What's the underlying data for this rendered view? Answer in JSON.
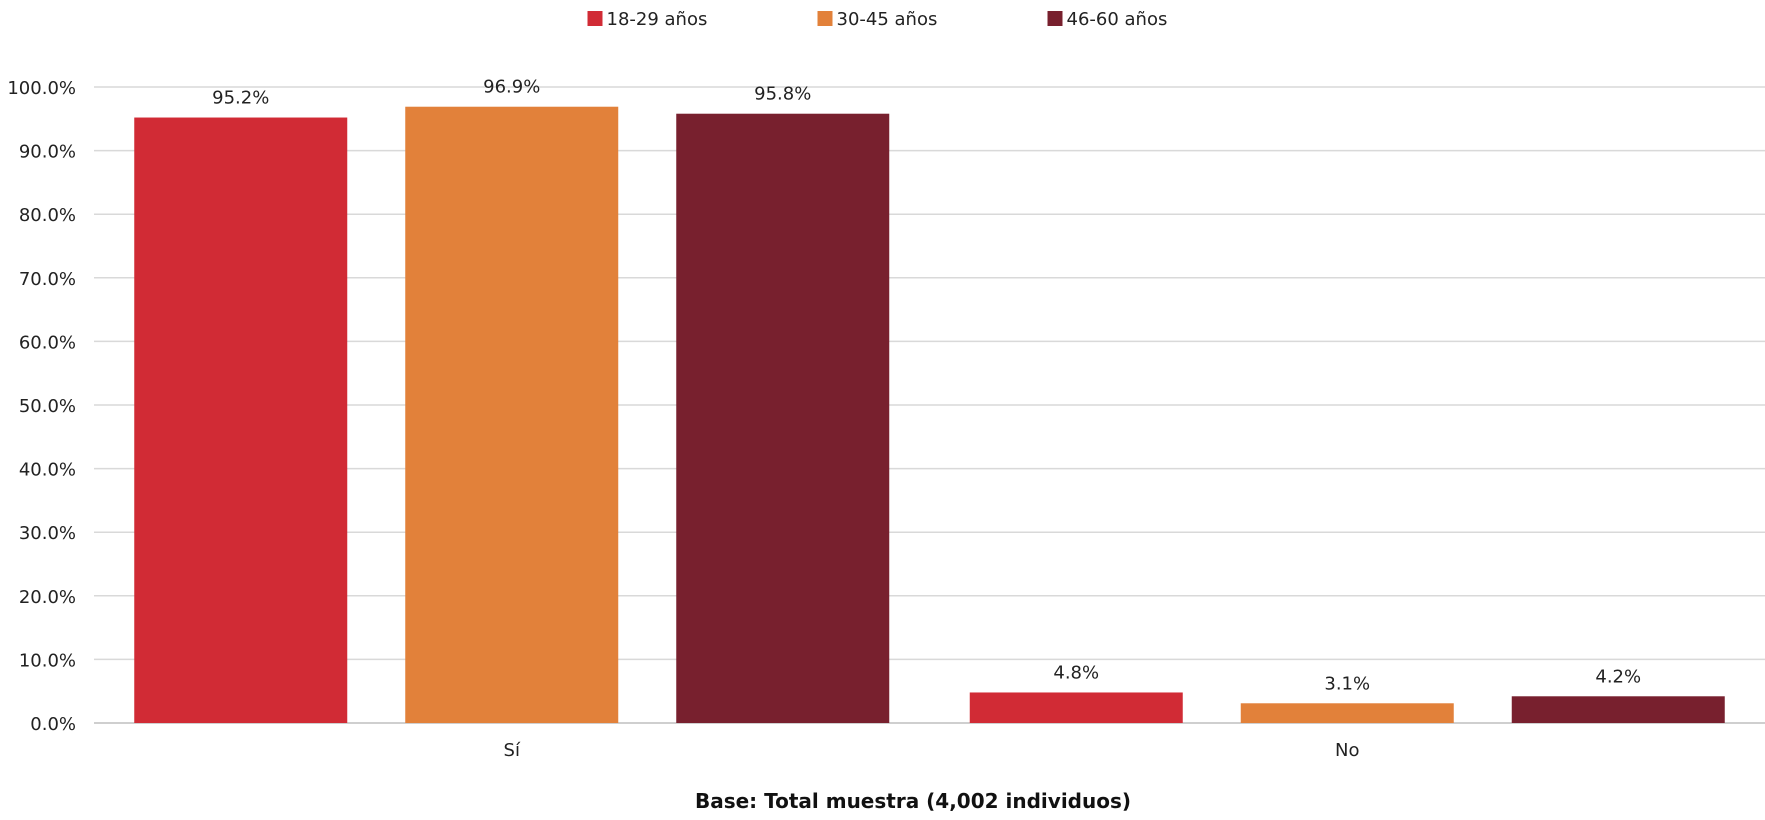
{
  "chart_data": {
    "type": "bar",
    "categories": [
      "Sí",
      "No"
    ],
    "series": [
      {
        "name": "18-29 años",
        "color": "#D12B35",
        "values": [
          95.2,
          4.8
        ],
        "labels": [
          "95.2%",
          "4.8%"
        ]
      },
      {
        "name": "30-45 años",
        "color": "#E2813A",
        "values": [
          96.9,
          3.1
        ],
        "labels": [
          "96.9%",
          "3.1%"
        ]
      },
      {
        "name": "46-60 años",
        "color": "#78202E",
        "values": [
          95.8,
          4.2
        ],
        "labels": [
          "95.8%",
          "4.2%"
        ]
      }
    ],
    "ylim": [
      0,
      100
    ],
    "yticks": [
      0,
      10,
      20,
      30,
      40,
      50,
      60,
      70,
      80,
      90,
      100
    ],
    "ytick_labels": [
      "0.0%",
      "10.0%",
      "20.0%",
      "30.0%",
      "40.0%",
      "50.0%",
      "60.0%",
      "70.0%",
      "80.0%",
      "90.0%",
      "100.0%"
    ],
    "grid": true,
    "legend_position": "top",
    "footnote": "Base: Total muestra (4,002 individuos)"
  }
}
